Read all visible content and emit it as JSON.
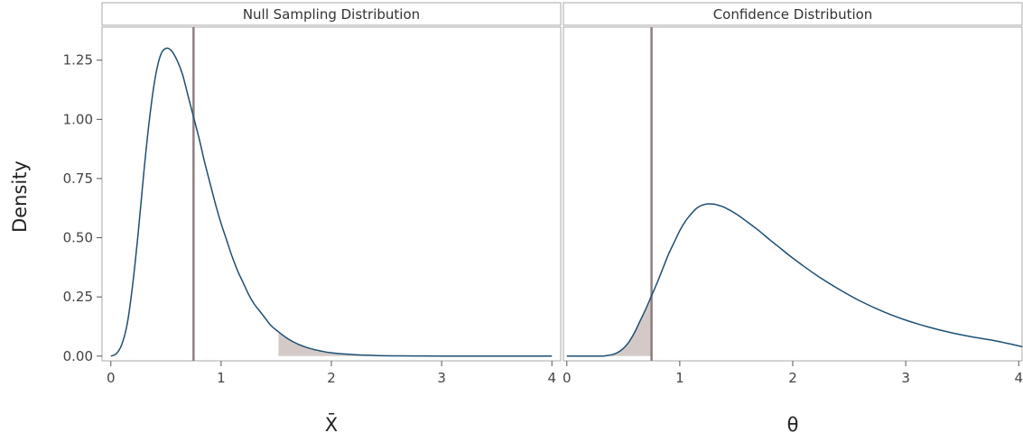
{
  "chart_data": {
    "type": "line",
    "ylabel": "Density",
    "ylim": [
      -0.02,
      1.39
    ],
    "yticks": [
      {
        "value": 0.0,
        "label": "0.00"
      },
      {
        "value": 0.25,
        "label": "0.25"
      },
      {
        "value": 0.5,
        "label": "0.50"
      },
      {
        "value": 0.75,
        "label": "0.75"
      },
      {
        "value": 1.0,
        "label": "1.00"
      },
      {
        "value": 1.25,
        "label": "1.25"
      }
    ],
    "grid": false,
    "legend": "none",
    "colors": {
      "curve": "#1d4f73",
      "observed_line": "#8f7f80",
      "shade": "#d3cac8",
      "panel_border": "#aaaaaa",
      "strip_background": "#ffffff"
    },
    "panels": [
      {
        "title": "Null Sampling Distribution",
        "xlabel": "X̄",
        "xlim": [
          -0.08,
          4.08
        ],
        "xticks": [
          {
            "value": 0,
            "label": "0"
          },
          {
            "value": 1,
            "label": "1"
          },
          {
            "value": 2,
            "label": "2"
          },
          {
            "value": 3,
            "label": "3"
          },
          {
            "value": 4,
            "label": "4"
          }
        ],
        "curve": {
          "x": [
            0,
            0.05,
            0.1,
            0.15,
            0.2,
            0.25,
            0.3,
            0.35,
            0.4,
            0.45,
            0.5,
            0.55,
            0.6,
            0.65,
            0.7,
            0.75,
            0.8,
            0.85,
            0.9,
            0.95,
            1.0,
            1.05,
            1.1,
            1.15,
            1.2,
            1.25,
            1.3,
            1.35,
            1.4,
            1.45,
            1.5,
            1.6,
            1.7,
            1.8,
            1.9,
            2.0,
            2.2,
            2.4,
            2.6,
            2.8,
            3.0,
            3.5,
            4.0
          ],
          "y": [
            0.0,
            0.01,
            0.05,
            0.14,
            0.31,
            0.53,
            0.78,
            1.0,
            1.17,
            1.27,
            1.3,
            1.29,
            1.25,
            1.19,
            1.1,
            1.01,
            0.92,
            0.82,
            0.73,
            0.64,
            0.56,
            0.49,
            0.42,
            0.36,
            0.31,
            0.26,
            0.22,
            0.19,
            0.16,
            0.13,
            0.11,
            0.075,
            0.05,
            0.033,
            0.022,
            0.014,
            0.006,
            0.0025,
            0.001,
            0.0004,
            0.0002,
            0.0,
            0.0
          ]
        },
        "observed_value": 0.75,
        "shaded_region": {
          "from": 1.52,
          "to": 4.0
        }
      },
      {
        "title": "Confidence Distribution",
        "xlabel": "θ",
        "xlim": [
          -0.03,
          4.03
        ],
        "xticks": [
          {
            "value": 0,
            "label": "0"
          },
          {
            "value": 1,
            "label": "1"
          },
          {
            "value": 2,
            "label": "2"
          },
          {
            "value": 3,
            "label": "3"
          },
          {
            "value": 4,
            "label": "4"
          }
        ],
        "curve": {
          "x": [
            0,
            0.3,
            0.35,
            0.4,
            0.45,
            0.5,
            0.55,
            0.6,
            0.65,
            0.7,
            0.75,
            0.8,
            0.85,
            0.9,
            0.95,
            1.0,
            1.05,
            1.1,
            1.15,
            1.2,
            1.25,
            1.3,
            1.35,
            1.4,
            1.5,
            1.6,
            1.7,
            1.8,
            1.9,
            2.0,
            2.2,
            2.4,
            2.6,
            2.8,
            3.0,
            3.2,
            3.4,
            3.6,
            3.8,
            4.03
          ],
          "y": [
            0.0,
            0.0,
            0.002,
            0.006,
            0.015,
            0.032,
            0.06,
            0.1,
            0.15,
            0.2,
            0.255,
            0.31,
            0.37,
            0.43,
            0.48,
            0.53,
            0.57,
            0.6,
            0.625,
            0.638,
            0.643,
            0.642,
            0.636,
            0.627,
            0.6,
            0.566,
            0.53,
            0.49,
            0.452,
            0.414,
            0.345,
            0.285,
            0.232,
            0.188,
            0.152,
            0.123,
            0.099,
            0.08,
            0.064,
            0.04
          ]
        },
        "observed_value": 0.75,
        "shaded_region": {
          "from": 0.3,
          "to": 0.75
        }
      }
    ]
  }
}
